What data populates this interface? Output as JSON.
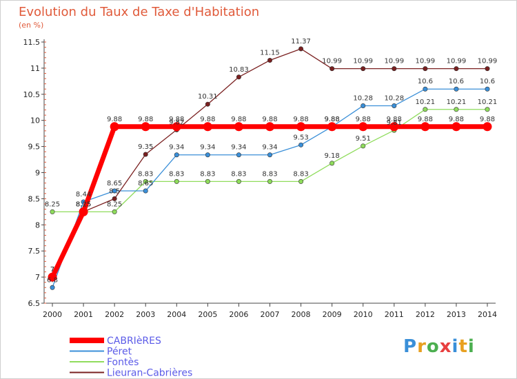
{
  "title": "Evolution du Taux de Taxe d'Habitation",
  "unit": "(en %)",
  "logo": "Proxiti",
  "chart_data": {
    "type": "line",
    "title": "Evolution du Taux de Taxe d'Habitation",
    "ylabel": "(en %)",
    "ylim": [
      6.5,
      11.5
    ],
    "yticks": [
      "6.5",
      "7",
      "7.5",
      "8",
      "8.5",
      "9",
      "9.5",
      "10",
      "10.5",
      "11",
      "11.5"
    ],
    "grid": false,
    "legend_position": "bottom-left",
    "x": [
      "2000",
      "2001",
      "2002",
      "2003",
      "2004",
      "2005",
      "2006",
      "2007",
      "2008",
      "2009",
      "2010",
      "2011",
      "2012",
      "2013",
      "2014"
    ],
    "series": [
      {
        "name": "CABRIèRES",
        "color": "#ff0000",
        "values": [
          7,
          8.25,
          9.88,
          9.88,
          9.88,
          9.88,
          9.88,
          9.88,
          9.88,
          9.88,
          9.88,
          9.88,
          9.88,
          9.88,
          9.88
        ],
        "labels": [
          "7",
          "8.25",
          "9.88",
          "9.88",
          "9.88",
          "9.88",
          "9.88",
          "9.88",
          "9.88",
          "9.88",
          "9.88",
          "9.88",
          "9.88",
          "9.88",
          "9.88"
        ]
      },
      {
        "name": "Péret",
        "color": "#3a8fd8",
        "values": [
          6.8,
          8.44,
          8.65,
          8.65,
          9.34,
          9.34,
          9.34,
          9.34,
          9.53,
          9.88,
          10.28,
          10.28,
          10.6,
          10.6,
          10.6
        ],
        "labels": [
          "6.8",
          "8.44",
          "8.65",
          "8.65",
          "9.34",
          "9.34",
          "9.34",
          "9.34",
          "9.53",
          "9.88",
          "10.28",
          "10.28",
          "10.6",
          "10.6",
          "10.6"
        ]
      },
      {
        "name": "Fontès",
        "color": "#8fdc5c",
        "values": [
          8.25,
          8.25,
          8.25,
          8.83,
          8.83,
          8.83,
          8.83,
          8.83,
          8.83,
          9.18,
          9.51,
          9.81,
          10.21,
          10.21,
          10.21
        ],
        "labels": [
          "8.25",
          "8.25",
          "8.25",
          "8.83",
          "8.83",
          "8.83",
          "8.83",
          "8.83",
          "8.83",
          "9.18",
          "9.51",
          "9.81",
          "10.21",
          "10.21",
          "10.21"
        ]
      },
      {
        "name": "Lieuran-Cabrières",
        "color": "#7a2020",
        "values": [
          7,
          8.25,
          8.5,
          9.35,
          9.82,
          10.31,
          10.83,
          11.15,
          11.37,
          10.99,
          10.99,
          10.99,
          10.99,
          10.99,
          10.99
        ],
        "labels": [
          "7",
          "8.25",
          "8.5",
          "9.35",
          "9.82",
          "10.31",
          "10.83",
          "11.15",
          "11.37",
          "10.99",
          "10.99",
          "10.99",
          "10.99",
          "10.99",
          "10.99"
        ]
      }
    ]
  }
}
